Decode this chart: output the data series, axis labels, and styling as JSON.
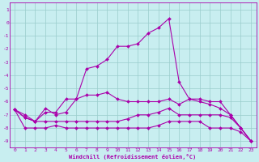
{
  "xlabel": "Windchill (Refroidissement éolien,°C)",
  "xlim": [
    -0.5,
    23.5
  ],
  "ylim": [
    -9.5,
    1.5
  ],
  "yticks": [
    1,
    0,
    -1,
    -2,
    -3,
    -4,
    -5,
    -6,
    -7,
    -8,
    -9
  ],
  "xticks": [
    0,
    1,
    2,
    3,
    4,
    5,
    6,
    7,
    8,
    9,
    10,
    11,
    12,
    13,
    14,
    15,
    16,
    17,
    18,
    19,
    20,
    21,
    22,
    23
  ],
  "bg_color": "#c8eef0",
  "line_color": "#aa00aa",
  "grid_color": "#99cccc",
  "series": [
    {
      "x": [
        0,
        1,
        2,
        3,
        4,
        5,
        6,
        7,
        8,
        9,
        10,
        11,
        12,
        13,
        14,
        15,
        16,
        17,
        18,
        19,
        20,
        21,
        22,
        23
      ],
      "y": [
        -6.6,
        -8.0,
        -8.0,
        -8.0,
        -7.8,
        -8.0,
        -8.0,
        -8.0,
        -8.0,
        -8.0,
        -8.0,
        -8.0,
        -8.0,
        -8.0,
        -7.8,
        -7.5,
        -7.5,
        -7.5,
        -7.5,
        -8.0,
        -8.0,
        -8.0,
        -8.3,
        -9.0
      ]
    },
    {
      "x": [
        0,
        1,
        2,
        3,
        4,
        5,
        6,
        7,
        8,
        9,
        10,
        11,
        12,
        13,
        14,
        15,
        16,
        17,
        18,
        19,
        20,
        21,
        22,
        23
      ],
      "y": [
        -6.6,
        -7.2,
        -7.5,
        -7.5,
        -7.5,
        -7.5,
        -7.5,
        -7.5,
        -7.5,
        -7.5,
        -7.5,
        -7.3,
        -7.0,
        -7.0,
        -6.8,
        -6.5,
        -7.0,
        -7.0,
        -7.0,
        -7.0,
        -7.0,
        -7.2,
        -8.0,
        -9.0
      ]
    },
    {
      "x": [
        0,
        1,
        2,
        3,
        4,
        5,
        6,
        7,
        8,
        9,
        10,
        11,
        12,
        13,
        14,
        15,
        16,
        17,
        18,
        19,
        20,
        21,
        22,
        23
      ],
      "y": [
        -6.6,
        -7.2,
        -7.5,
        -6.8,
        -6.8,
        -5.8,
        -5.8,
        -5.5,
        -5.5,
        -5.3,
        -5.8,
        -6.0,
        -6.0,
        -6.0,
        -6.0,
        -5.8,
        -6.2,
        -5.8,
        -5.8,
        -6.0,
        -6.0,
        -7.0,
        -8.0,
        -9.0
      ]
    },
    {
      "x": [
        0,
        1,
        2,
        3,
        4,
        5,
        6,
        7,
        8,
        9,
        10,
        11,
        12,
        13,
        14,
        15,
        16,
        17,
        18,
        19,
        20,
        21,
        22,
        23
      ],
      "y": [
        -6.6,
        -7.0,
        -7.5,
        -6.5,
        -7.0,
        -6.8,
        -5.8,
        -3.5,
        -3.3,
        -2.8,
        -1.8,
        -1.8,
        -1.6,
        -0.8,
        -0.4,
        0.3,
        -4.5,
        -5.8,
        -6.0,
        -6.2,
        -6.5,
        -7.0,
        -8.0,
        -9.0
      ]
    }
  ]
}
